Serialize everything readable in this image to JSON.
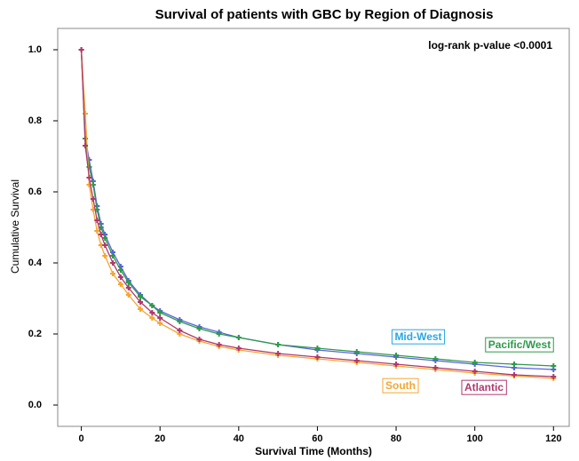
{
  "chart_data": {
    "type": "line",
    "step": true,
    "title": "Survival of patients with GBC by Region of Diagnosis",
    "annotation": "log-rank p-value <0.0001",
    "x_label": "Survival Time (Months)",
    "y_label": "Cumulative Survival",
    "x": [
      0,
      1,
      2,
      3,
      4,
      5,
      6,
      8,
      10,
      12,
      15,
      18,
      20,
      25,
      30,
      35,
      40,
      50,
      60,
      70,
      80,
      90,
      100,
      110,
      120
    ],
    "series": [
      {
        "name": "Mid-West",
        "color": "#5b63dd",
        "label_color": "#2aa6e0",
        "values": [
          1.0,
          0.75,
          0.69,
          0.63,
          0.56,
          0.51,
          0.48,
          0.43,
          0.39,
          0.35,
          0.31,
          0.28,
          0.265,
          0.24,
          0.22,
          0.205,
          0.19,
          0.17,
          0.155,
          0.145,
          0.135,
          0.125,
          0.115,
          0.105,
          0.1
        ]
      },
      {
        "name": "Pacific/West",
        "color": "#2e9a4c",
        "label_color": "#2e9a4c",
        "values": [
          1.0,
          0.75,
          0.67,
          0.62,
          0.55,
          0.5,
          0.47,
          0.42,
          0.38,
          0.345,
          0.305,
          0.28,
          0.26,
          0.235,
          0.215,
          0.2,
          0.19,
          0.17,
          0.16,
          0.15,
          0.14,
          0.13,
          0.12,
          0.115,
          0.11
        ]
      },
      {
        "name": "South",
        "color": "#f5a532",
        "label_color": "#f5a532",
        "values": [
          1.0,
          0.82,
          0.62,
          0.55,
          0.49,
          0.45,
          0.42,
          0.37,
          0.34,
          0.31,
          0.27,
          0.245,
          0.23,
          0.2,
          0.18,
          0.165,
          0.155,
          0.14,
          0.13,
          0.12,
          0.11,
          0.1,
          0.09,
          0.082,
          0.075
        ]
      },
      {
        "name": "Atlantic",
        "color": "#b0386e",
        "label_color": "#b0386e",
        "values": [
          1.0,
          0.73,
          0.64,
          0.58,
          0.52,
          0.48,
          0.45,
          0.4,
          0.36,
          0.33,
          0.29,
          0.26,
          0.245,
          0.21,
          0.185,
          0.17,
          0.16,
          0.145,
          0.135,
          0.125,
          0.115,
          0.105,
          0.095,
          0.085,
          0.08
        ]
      }
    ],
    "xlim": [
      -6,
      124
    ],
    "ylim": [
      -0.06,
      1.06
    ],
    "xticks": [
      0,
      20,
      40,
      60,
      80,
      100,
      120
    ],
    "yticks": [
      {
        "value": 0,
        "label": "0.0"
      },
      {
        "value": 0.2,
        "label": "0.2"
      },
      {
        "value": 0.4,
        "label": "0.4"
      },
      {
        "value": 0.6,
        "label": "0.6"
      },
      {
        "value": 0.8,
        "label": "0.8"
      },
      {
        "value": 1.0,
        "label": "1.0"
      }
    ]
  }
}
